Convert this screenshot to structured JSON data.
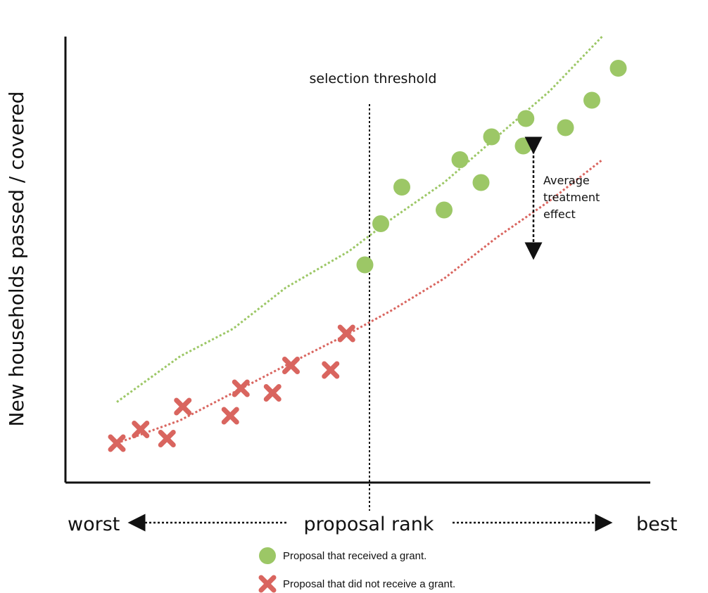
{
  "chart_data": {
    "type": "scatter",
    "title": "",
    "ylabel": "New households passed / covered",
    "xlabel": "proposal rank",
    "x_direction": {
      "left": "worst",
      "right": "best"
    },
    "xlim": [
      0,
      100
    ],
    "ylim": [
      0,
      100
    ],
    "grid": false,
    "legend_position": "bottom-center",
    "threshold": {
      "x": 52,
      "label": "selection threshold"
    },
    "annotation": {
      "text": [
        "Average",
        "treatment",
        "effect"
      ],
      "x": 80.5
    },
    "series": [
      {
        "name": "Proposal that received a grant.",
        "marker": "circle",
        "color": "#9cc766",
        "trend_color": "#9cc766",
        "trend": [
          [
            8,
            18
          ],
          [
            20,
            28
          ],
          [
            30,
            34
          ],
          [
            40,
            43
          ],
          [
            52,
            51
          ],
          [
            60,
            58
          ],
          [
            70,
            66
          ],
          [
            80,
            76
          ],
          [
            90,
            86
          ],
          [
            100,
            98
          ]
        ],
        "points": [
          [
            55,
            48
          ],
          [
            58,
            57
          ],
          [
            62,
            65
          ],
          [
            70,
            60
          ],
          [
            73,
            71
          ],
          [
            77,
            66
          ],
          [
            79,
            76
          ],
          [
            85,
            74
          ],
          [
            85.5,
            80
          ],
          [
            93,
            78
          ],
          [
            98,
            84
          ],
          [
            103,
            91
          ]
        ]
      },
      {
        "name": "Proposal that did not receive a grant.",
        "marker": "x",
        "color": "#d9655f",
        "trend_color": "#d9655f",
        "trend": [
          [
            8,
            9
          ],
          [
            20,
            14
          ],
          [
            30,
            20
          ],
          [
            40,
            26
          ],
          [
            52,
            33
          ],
          [
            60,
            38
          ],
          [
            70,
            45
          ],
          [
            80,
            54
          ],
          [
            90,
            62
          ],
          [
            100,
            71
          ]
        ],
        "points": [
          [
            8,
            9
          ],
          [
            12.5,
            12
          ],
          [
            17.5,
            10
          ],
          [
            20.5,
            17
          ],
          [
            29.5,
            15
          ],
          [
            31.5,
            21
          ],
          [
            37.5,
            20
          ],
          [
            41,
            26
          ],
          [
            48.5,
            25
          ],
          [
            51.5,
            33
          ]
        ]
      }
    ]
  }
}
